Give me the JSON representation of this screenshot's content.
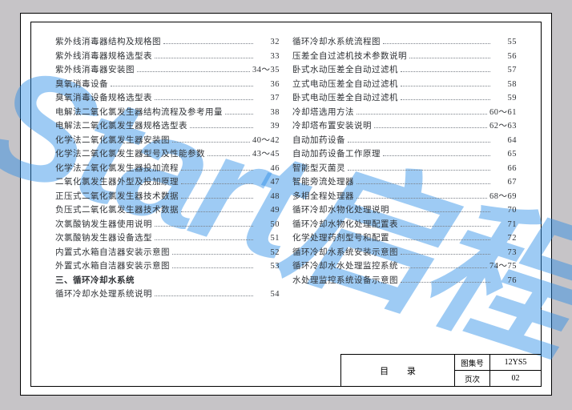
{
  "watermark": "Start启程",
  "footer": {
    "title": "目 录",
    "meta": [
      {
        "k": "图集号",
        "v": "12YS5"
      },
      {
        "k": "页次",
        "v": "02"
      }
    ]
  },
  "columns": [
    [
      {
        "t": "紫外线消毒器结构及规格图",
        "p": "32"
      },
      {
        "t": "紫外线消毒器规格选型表",
        "p": "33"
      },
      {
        "t": "紫外线消毒器安装图",
        "p": "34～35"
      },
      {
        "t": "臭氧消毒设备",
        "p": "36"
      },
      {
        "t": "臭氧消毒设备规格选型表",
        "p": "37"
      },
      {
        "t": "电解法二氧化氯发生器结构流程及参考用量",
        "p": "38"
      },
      {
        "t": "电解法二氧化氯发生器规格选型表",
        "p": "39"
      },
      {
        "t": "化学法二氧化氯发生器安装图",
        "p": "40～42"
      },
      {
        "t": "化学法二氧化氯发生器型号及性能参数",
        "p": "43～45"
      },
      {
        "t": "化学法二氧化氯发生器投加流程",
        "p": "46"
      },
      {
        "t": "二氧化氯发生器外型及投加原理",
        "p": "47"
      },
      {
        "t": "正压式二氧化氯发生器技术数据",
        "p": "48"
      },
      {
        "t": "负压式二氧化氯发生器技术数据",
        "p": "49"
      },
      {
        "t": "次氯酸钠发生器使用说明",
        "p": "50"
      },
      {
        "t": "次氯酸钠发生器设备选型",
        "p": "51"
      },
      {
        "t": "内置式水箱自洁器安装示意图",
        "p": "52"
      },
      {
        "t": "外置式水箱自洁器安装示意图",
        "p": "53"
      },
      {
        "t": "三、循环冷却水系统",
        "section": true
      },
      {
        "t": "循环冷却水处理系统说明",
        "p": "54"
      }
    ],
    [
      {
        "t": "循环冷却水系统流程图",
        "p": "55"
      },
      {
        "t": "压差全自过滤机技术参数说明",
        "p": "56"
      },
      {
        "t": "卧式水动压差全自动过滤机",
        "p": "57"
      },
      {
        "t": "立式电动压差全自动过滤机",
        "p": "58"
      },
      {
        "t": "卧式电动压差全自动过滤机",
        "p": "59"
      },
      {
        "t": "冷却塔选用方法",
        "p": "60～61"
      },
      {
        "t": "冷却塔布置安装说明",
        "p": "62～63"
      },
      {
        "t": "自动加药设备",
        "p": "64"
      },
      {
        "t": "自动加药设备工作原理",
        "p": "65"
      },
      {
        "t": "智能型灭菌灵",
        "p": "66"
      },
      {
        "t": "智能旁流处理器",
        "p": "67"
      },
      {
        "t": "多相全程处理器",
        "p": "68～69"
      },
      {
        "t": "循环冷却水物化处理说明",
        "p": "70"
      },
      {
        "t": "循环冷却水物化处理配置表",
        "p": "71"
      },
      {
        "t": "化学处理药剂型号和配置",
        "p": "72"
      },
      {
        "t": "循环冷却水系统安装示意图",
        "p": "73"
      },
      {
        "t": "循环冷却水水处理监控系统",
        "p": "74～75"
      },
      {
        "t": "水处理监控系统设备示意图",
        "p": "76"
      }
    ]
  ]
}
